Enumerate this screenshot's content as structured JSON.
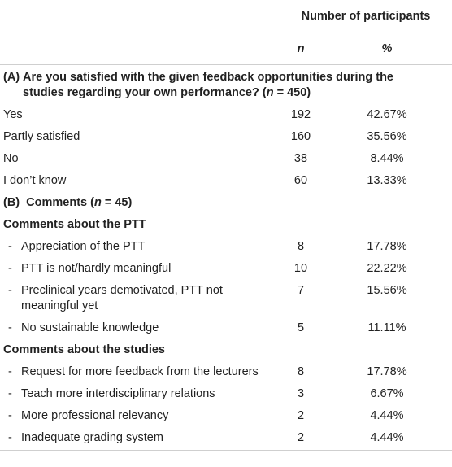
{
  "header": {
    "group_label": "Number of participants",
    "col_n": "n",
    "col_pct": "%"
  },
  "section_a": {
    "prefix": "(A)",
    "question": "Are you satisfied with the given feedback opportunities during the studies regarding your own performance? (n = 450)",
    "rows": [
      {
        "label": "Yes",
        "n": "192",
        "pct": "42.67%"
      },
      {
        "label": "Partly satisfied",
        "n": "160",
        "pct": "35.56%"
      },
      {
        "label": "No",
        "n": "38",
        "pct": "8.44%"
      },
      {
        "label": "I don’t know",
        "n": "60",
        "pct": "13.33%"
      }
    ]
  },
  "section_b": {
    "title": "(B) Comments (n = 45)",
    "groups": [
      {
        "title": "Comments about the PTT",
        "items": [
          {
            "label": "Appreciation of the PTT",
            "n": "8",
            "pct": "17.78%"
          },
          {
            "label": "PTT is not/hardly meaningful",
            "n": "10",
            "pct": "22.22%"
          },
          {
            "label": "Preclinical years demotivated, PTT not meaningful yet",
            "n": "7",
            "pct": "15.56%"
          },
          {
            "label": "No sustainable knowledge",
            "n": "5",
            "pct": "11.11%"
          }
        ]
      },
      {
        "title": "Comments about the studies",
        "items": [
          {
            "label": "Request for more feedback from the lecturers",
            "n": "8",
            "pct": "17.78%"
          },
          {
            "label": "Teach more interdisciplinary relations",
            "n": "3",
            "pct": "6.67%"
          },
          {
            "label": "More professional relevancy",
            "n": "2",
            "pct": "4.44%"
          },
          {
            "label": "Inadequate grading system",
            "n": "2",
            "pct": "4.44%"
          }
        ]
      }
    ],
    "dash": "-"
  }
}
